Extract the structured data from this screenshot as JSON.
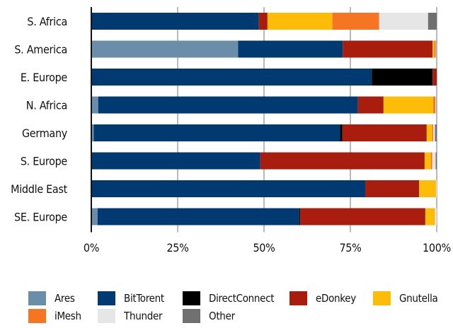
{
  "chart_data": {
    "type": "bar",
    "orientation": "horizontal",
    "stacked": true,
    "percent": true,
    "categories": [
      "S. Africa",
      "S. America",
      "E. Europe",
      "N. Africa",
      "Germany",
      "S. Europe",
      "Middle East",
      "SE. Europe"
    ],
    "series": [
      {
        "name": "Ares",
        "color": "#6a8daa",
        "values": [
          0,
          42.5,
          0,
          2.0,
          0.7,
          0,
          0,
          1.8
        ]
      },
      {
        "name": "BitTorent",
        "color": "#003a70",
        "values": [
          48.5,
          30.3,
          81.2,
          75.2,
          71.3,
          48.9,
          79.3,
          58.4
        ]
      },
      {
        "name": "DirectConnect",
        "color": "#000000",
        "values": [
          0,
          0,
          17.6,
          0,
          0.7,
          0,
          0,
          0.3
        ]
      },
      {
        "name": "eDonkey",
        "color": "#a81d0d",
        "values": [
          2.5,
          26.0,
          1.2,
          7.4,
          24.4,
          47.6,
          15.6,
          36.2
        ]
      },
      {
        "name": "Gnutella",
        "color": "#fdbc07",
        "values": [
          18.8,
          0.5,
          0,
          14.4,
          1.6,
          1.8,
          4.9,
          2.8
        ]
      },
      {
        "name": "iMesh",
        "color": "#f57522",
        "values": [
          13.5,
          0.4,
          0,
          0.6,
          0.3,
          0.4,
          0,
          0
        ]
      },
      {
        "name": "Thunder",
        "color": "#e6e6e6",
        "values": [
          14.2,
          0.2,
          0,
          0.3,
          0.5,
          1.0,
          0.2,
          0.5
        ]
      },
      {
        "name": "Other",
        "color": "#707070",
        "values": [
          2.5,
          0.1,
          0,
          0.1,
          0.5,
          0.3,
          0,
          0
        ]
      }
    ],
    "xlim": [
      0,
      100
    ],
    "ticks": [
      "0%",
      "25%",
      "50%",
      "75%",
      "100%"
    ],
    "grid": true,
    "legend_position": "bottom",
    "xlabel": "",
    "ylabel": "",
    "title": ""
  }
}
